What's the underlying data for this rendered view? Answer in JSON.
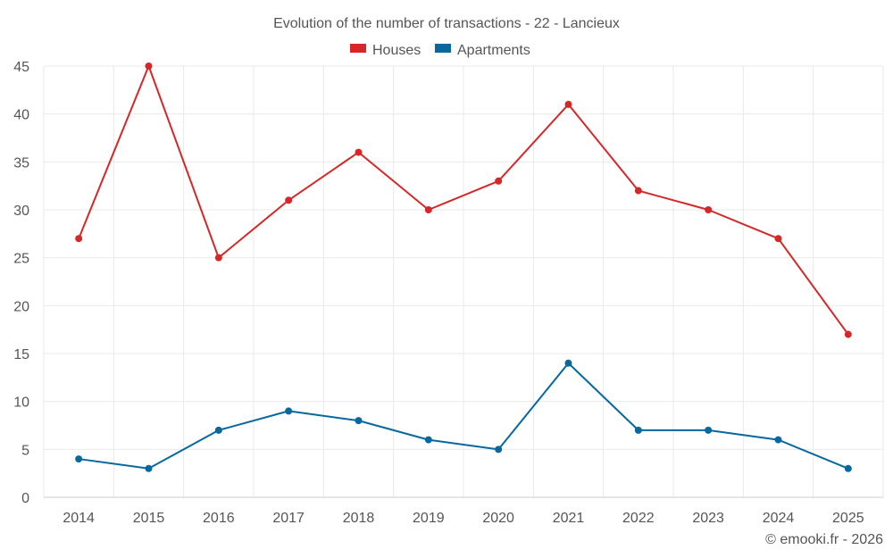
{
  "chart_data": {
    "type": "line",
    "title": "Evolution of the number of transactions - 22 - Lancieux",
    "xlabel": "",
    "ylabel": "",
    "categories": [
      "2014",
      "2015",
      "2016",
      "2017",
      "2018",
      "2019",
      "2020",
      "2021",
      "2022",
      "2023",
      "2024",
      "2025"
    ],
    "ylim": [
      0,
      45
    ],
    "yticks": [
      0,
      5,
      10,
      15,
      20,
      25,
      30,
      35,
      40,
      45
    ],
    "grid": true,
    "legend_position": "top-center",
    "series": [
      {
        "name": "Houses",
        "color": "#d62728",
        "values": [
          27,
          45,
          25,
          31,
          36,
          30,
          33,
          41,
          32,
          30,
          27,
          17
        ]
      },
      {
        "name": "Apartments",
        "color": "#07689f",
        "values": [
          4,
          3,
          7,
          9,
          8,
          6,
          5,
          14,
          7,
          7,
          6,
          3
        ]
      }
    ]
  },
  "credit": "© emooki.fr - 2026"
}
